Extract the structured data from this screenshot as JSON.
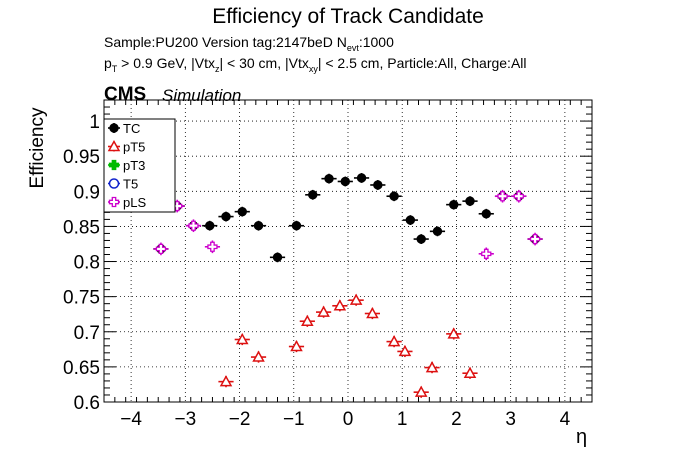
{
  "header": {
    "title": "Efficiency of Track Candidate",
    "sample_text": "Sample:PU200   Version tag:2147beD  N",
    "sample_sub": "evt",
    "sample_tail": ":1000",
    "cuts_p": "p",
    "cuts_p_sub": "T",
    "cuts_1": " > 0.9 GeV, |Vtx",
    "cuts_z_sub": "z",
    "cuts_2": "| < 30 cm, |Vtx",
    "cuts_xy_sub": "xy",
    "cuts_3": "| < 2.5 cm, Particle:All, Charge:All",
    "cms": "CMS",
    "simulation": "Simulation"
  },
  "chart_data": {
    "type": "scatter",
    "xlabel": "η",
    "ylabel": "Efficiency",
    "xlim": [
      -4.5,
      4.5
    ],
    "ylim": [
      0.6,
      1.03
    ],
    "xticks": [
      -4,
      -3,
      -2,
      -1,
      0,
      1,
      2,
      3,
      4
    ],
    "xtick_labels": [
      "−4",
      "−3",
      "−2",
      "−1",
      "0",
      "1",
      "2",
      "3",
      "4"
    ],
    "yticks": [
      0.6,
      0.65,
      0.7,
      0.75,
      0.8,
      0.85,
      0.9,
      0.95,
      1.0
    ],
    "ytick_labels": [
      "0.6",
      "0.65",
      "0.7",
      "0.75",
      "0.8",
      "0.85",
      "0.9",
      "0.95",
      "1"
    ],
    "grid": true,
    "legend_position": "top-left",
    "x_err": 0.14,
    "series": [
      {
        "name": "TC",
        "color": "#000000",
        "marker": "circle-filled",
        "points": [
          [
            -3.45,
            0.818
          ],
          [
            -3.15,
            0.879
          ],
          [
            -2.85,
            0.851
          ],
          [
            -2.55,
            0.851
          ],
          [
            -2.25,
            0.864
          ],
          [
            -1.95,
            0.871
          ],
          [
            -1.65,
            0.851
          ],
          [
            -1.3,
            0.806
          ],
          [
            -0.95,
            0.851
          ],
          [
            -0.65,
            0.895
          ],
          [
            -0.35,
            0.918
          ],
          [
            -0.05,
            0.914
          ],
          [
            0.25,
            0.919
          ],
          [
            0.55,
            0.909
          ],
          [
            0.85,
            0.893
          ],
          [
            1.15,
            0.859
          ],
          [
            1.35,
            0.832
          ],
          [
            1.65,
            0.843
          ],
          [
            1.95,
            0.881
          ],
          [
            2.25,
            0.886
          ],
          [
            2.55,
            0.868
          ],
          [
            2.85,
            0.893
          ],
          [
            3.15,
            0.893
          ],
          [
            3.45,
            0.832
          ]
        ],
        "y_err": 0.007
      },
      {
        "name": "pT5",
        "color": "#dd1111",
        "marker": "triangle-open",
        "points": [
          [
            -2.25,
            0.629
          ],
          [
            -1.95,
            0.689
          ],
          [
            -1.65,
            0.664
          ],
          [
            -0.95,
            0.679
          ],
          [
            -0.75,
            0.715
          ],
          [
            -0.45,
            0.728
          ],
          [
            -0.15,
            0.737
          ],
          [
            0.15,
            0.745
          ],
          [
            0.45,
            0.726
          ],
          [
            0.85,
            0.686
          ],
          [
            1.05,
            0.672
          ],
          [
            1.35,
            0.614
          ],
          [
            1.55,
            0.649
          ],
          [
            1.95,
            0.697
          ],
          [
            2.25,
            0.641
          ]
        ],
        "y_err": 0.008
      },
      {
        "name": "pT3",
        "color": "#00bb00",
        "marker": "cross-filled",
        "points": [],
        "y_err": 0
      },
      {
        "name": "T5",
        "color": "#1122cc",
        "marker": "circle-open",
        "points": [],
        "y_err": 0
      },
      {
        "name": "pLS",
        "color": "#cc00cc",
        "marker": "cross-open",
        "points": [
          [
            -3.45,
            0.818
          ],
          [
            -3.15,
            0.879
          ],
          [
            -2.85,
            0.851
          ],
          [
            -2.5,
            0.821
          ],
          [
            2.55,
            0.811
          ],
          [
            2.85,
            0.893
          ],
          [
            3.15,
            0.893
          ],
          [
            3.45,
            0.832
          ]
        ],
        "y_err": 0.009
      }
    ]
  }
}
